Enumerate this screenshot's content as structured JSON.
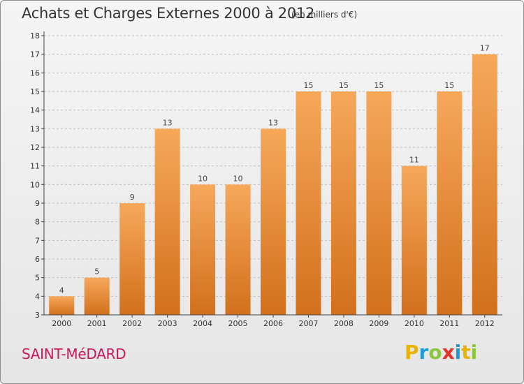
{
  "header": {
    "title": "Achats et Charges Externes 2000 à 2012",
    "subtitle": "(en milliers d'€)"
  },
  "footer": {
    "place": "SAINT-MéDARD",
    "logo": "Proxiti",
    "logo_letters": [
      {
        "ch": "P",
        "color": "#e8b400"
      },
      {
        "ch": "r",
        "color": "#1e9ad6"
      },
      {
        "ch": "o",
        "color": "#8cc63f"
      },
      {
        "ch": "x",
        "color": "#e4322b"
      },
      {
        "ch": "i",
        "color": "#1e9ad6"
      },
      {
        "ch": "t",
        "color": "#e8b400"
      },
      {
        "ch": "i",
        "color": "#8cc63f"
      }
    ]
  },
  "colors": {
    "bar_top": "#f6a85a",
    "bar_bottom": "#d2701c",
    "grid": "#bfbfbf",
    "axis": "#444444"
  },
  "chart_data": {
    "type": "bar",
    "title": "Achats et Charges Externes 2000 à 2012",
    "subtitle": "(en milliers d'€)",
    "categories": [
      "2000",
      "2001",
      "2002",
      "2003",
      "2004",
      "2005",
      "2006",
      "2007",
      "2008",
      "2009",
      "2010",
      "2011",
      "2012"
    ],
    "values": [
      4,
      5,
      9,
      13,
      10,
      10,
      13,
      15,
      15,
      15,
      11,
      15,
      17
    ],
    "data_labels": [
      "4",
      "5",
      "9",
      "13",
      "10",
      "10",
      "13",
      "15",
      "15",
      "15",
      "11",
      "15",
      "17"
    ],
    "ylim": [
      3,
      18
    ],
    "yticks": [
      3,
      4,
      5,
      6,
      7,
      8,
      9,
      10,
      11,
      12,
      13,
      14,
      15,
      16,
      17,
      18
    ],
    "grid": true,
    "legend": "none"
  }
}
